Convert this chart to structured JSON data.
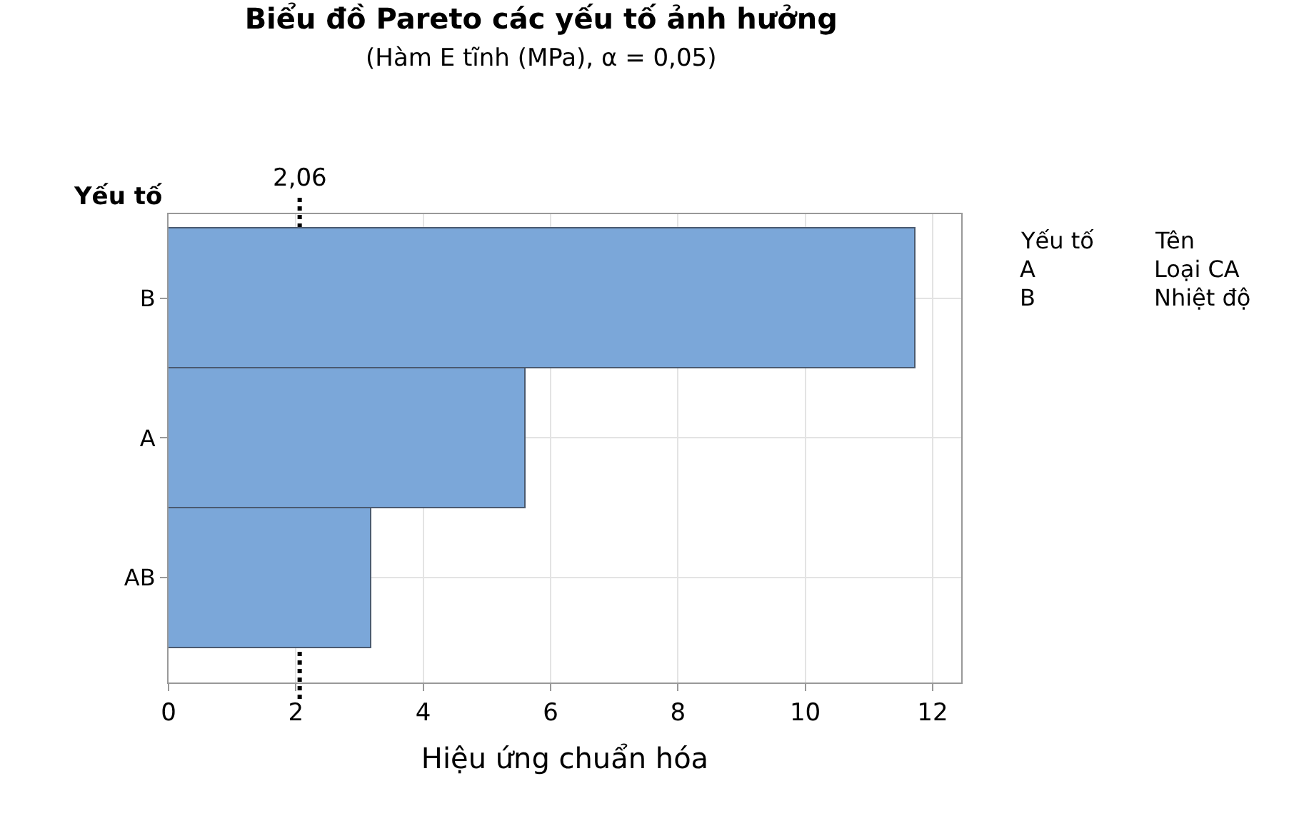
{
  "chart_data": {
    "type": "bar",
    "orientation": "horizontal",
    "title": "Biểu đồ Pareto các yếu tố ảnh hưởng",
    "subtitle": "(Hàm E tĩnh (MPa), α = 0,05)",
    "xlabel": "Hiệu ứng chuẩn hóa",
    "ylabel": "Yếu tố",
    "categories": [
      "B",
      "A",
      "AB"
    ],
    "values": [
      11.73,
      5.6,
      3.19
    ],
    "color": "#7ba7d9",
    "xlim": [
      0,
      12.45
    ],
    "xticks": [
      0,
      2,
      4,
      6,
      8,
      10,
      12
    ],
    "grid": true,
    "ref_lines": [
      {
        "axis": "x",
        "value": 2.06,
        "label": "2,06",
        "color": "#000000",
        "line_style": "dotted"
      }
    ],
    "annotations": [
      "Yếu tố",
      "Tên",
      "A",
      "Loại CA",
      "B",
      "Nhiệt độ"
    ]
  }
}
